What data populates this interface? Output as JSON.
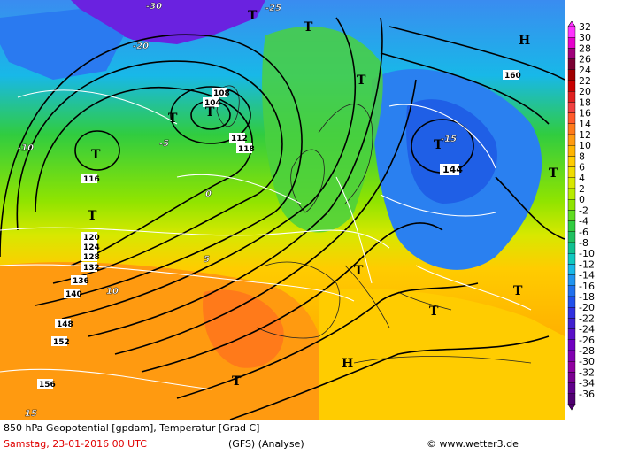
{
  "footer": {
    "line1": "850 hPa Geopotential [gpdam], Temperatur [Grad C]",
    "date": "Samstag, 23-01-2016   00 UTC",
    "model": "(GFS)   (Analyse)",
    "credit": "© www.wetter3.de"
  },
  "legend": {
    "values": [
      "32",
      "30",
      "28",
      "26",
      "24",
      "22",
      "20",
      "18",
      "16",
      "14",
      "12",
      "10",
      "8",
      "6",
      "4",
      "2",
      "0",
      "-2",
      "-4",
      "-6",
      "-8",
      "-10",
      "-12",
      "-14",
      "-16",
      "-18",
      "-20",
      "-22",
      "-24",
      "-26",
      "-28",
      "-30",
      "-32",
      "-34",
      "-36"
    ],
    "colors": [
      "#ff33ff",
      "#e600cc",
      "#a0007a",
      "#7a0032",
      "#a00000",
      "#c80000",
      "#e02020",
      "#f04040",
      "#ff5a2a",
      "#ff7a1a",
      "#ff9a10",
      "#ffb400",
      "#ffcc00",
      "#f0dc00",
      "#d8e800",
      "#b8ec00",
      "#90e400",
      "#60dc20",
      "#30cc40",
      "#20c060",
      "#10c090",
      "#10c8c0",
      "#18b8e8",
      "#2094f0",
      "#2070ee",
      "#2050ec",
      "#3030e0",
      "#4020d0",
      "#5a10c8",
      "#7000c0",
      "#8000b0",
      "#9000a0",
      "#7a0090",
      "#60008a",
      "#500070"
    ]
  },
  "map": {
    "geopotential_labels": [
      "104",
      "108",
      "112",
      "116",
      "118",
      "120",
      "124",
      "128",
      "132",
      "136",
      "140",
      "144",
      "148",
      "152",
      "156",
      "160"
    ],
    "temperature_labels": [
      "-30",
      "-25",
      "-20",
      "-15",
      "-10",
      "-5",
      "0",
      "5",
      "10",
      "15"
    ],
    "highs": [
      "H",
      "H"
    ],
    "lows": [
      "T",
      "T",
      "T",
      "T",
      "T",
      "T",
      "T",
      "T",
      "T",
      "T",
      "T",
      "T",
      "T"
    ],
    "colors": {
      "warm": "#ff9a10",
      "mild": "#ffcc00",
      "cool": "#90e400",
      "cold": "#18b8e8",
      "very_cold": "#2070ee",
      "extreme": "#7000c0"
    }
  }
}
